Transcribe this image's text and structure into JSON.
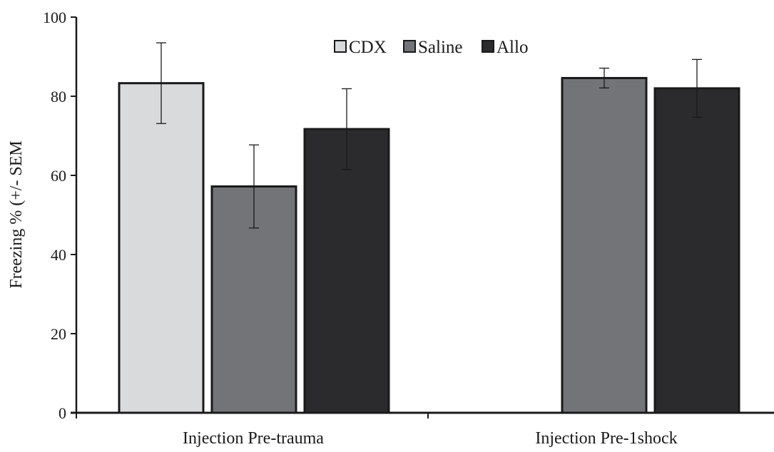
{
  "chart_data": {
    "type": "bar",
    "title": "",
    "xlabel": "",
    "ylabel": "Freezing % (+/- SEM",
    "ylim": [
      0,
      100
    ],
    "yticks": [
      0,
      20,
      40,
      60,
      80,
      100
    ],
    "grid": false,
    "legend_position": "top-center",
    "categories": [
      "Injection Pre-trauma",
      "Injection Pre-1shock"
    ],
    "series": [
      {
        "name": "CDX",
        "color": "#d9dadc",
        "values": [
          83.3,
          null
        ],
        "errors": [
          10.2,
          null
        ]
      },
      {
        "name": "Saline",
        "color": "#737478",
        "values": [
          57.2,
          84.6
        ],
        "errors": [
          10.5,
          2.5
        ]
      },
      {
        "name": "Allo",
        "color": "#2b2a2c",
        "values": [
          71.7,
          82.0
        ],
        "errors": [
          10.2,
          7.3
        ]
      }
    ]
  }
}
